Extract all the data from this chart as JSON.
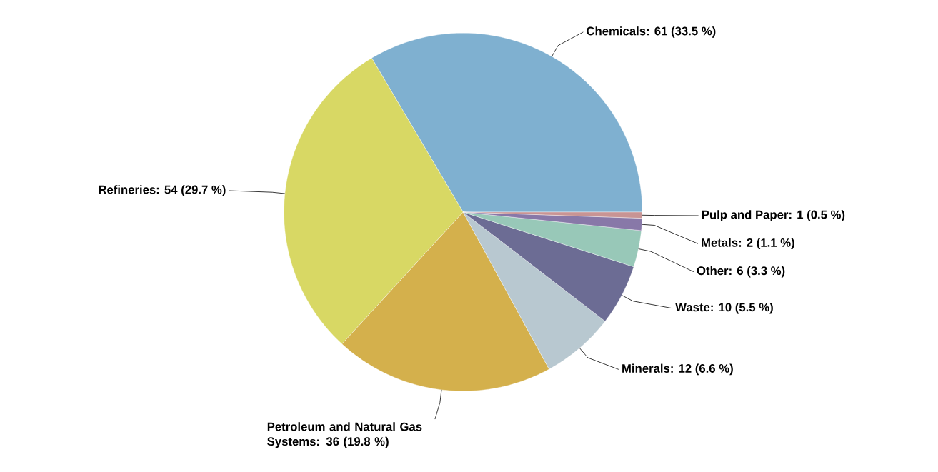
{
  "chart_data": {
    "type": "pie",
    "categories": [
      "Chemicals: 61 (33.5 %)",
      "Refineries: 54 (29.7 %)",
      "Petroleum and Natural Gas Systems: 36 (19.8 %)",
      "Minerals: 12 (6.6 %)",
      "Waste: 10 (5.5 %)",
      "Other: 6 (3.3 %)",
      "Metals: 2 (1.1 %)",
      "Pulp and Paper: 1 (0.5 %)"
    ],
    "values": [
      61,
      54,
      36,
      12,
      10,
      6,
      2,
      1
    ],
    "colors": [
      "#7fb0d0",
      "#d8d864",
      "#d4b04c",
      "#b8c8d0",
      "#6c6c94",
      "#98c8b8",
      "#8878a8",
      "#c89494"
    ]
  }
}
